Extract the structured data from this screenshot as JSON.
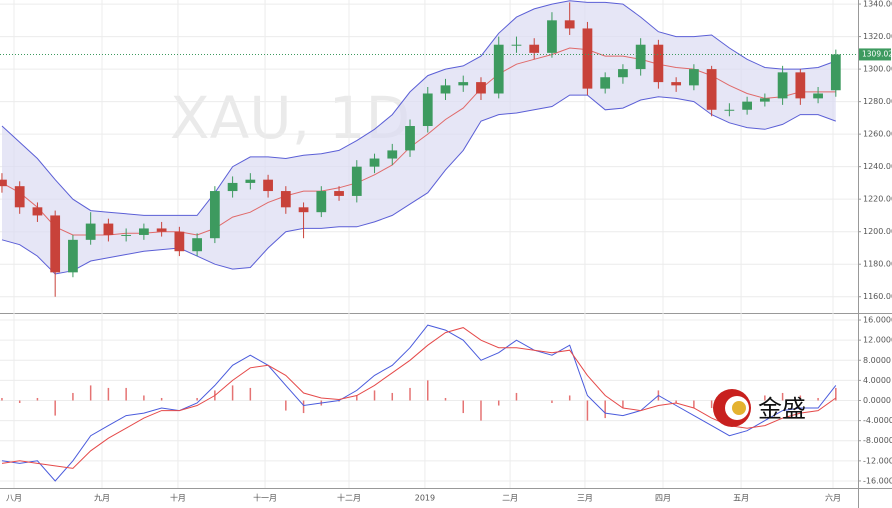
{
  "chart_data": [
    {
      "type": "candlestick",
      "watermark": "XAU, 1D",
      "current_price": 1309.02,
      "xlim": [
        -0.11,
        48.25
      ],
      "xticks": [
        {
          "value": 0.68,
          "label": "八月"
        },
        {
          "value": 5.64,
          "label": "九月"
        },
        {
          "value": 9.92,
          "label": "十月"
        },
        {
          "value": 14.83,
          "label": "十一月"
        },
        {
          "value": 19.56,
          "label": "十二月"
        },
        {
          "value": 23.84,
          "label": "2019"
        },
        {
          "value": 28.64,
          "label": "二月"
        },
        {
          "value": 32.86,
          "label": "三月"
        },
        {
          "value": 37.26,
          "label": "四月"
        },
        {
          "value": 41.66,
          "label": "五月"
        },
        {
          "value": 46.84,
          "label": "六月"
        }
      ],
      "ylim": [
        1150,
        1342.5
      ],
      "yticks": [
        {
          "value": 1160,
          "label": "1160.00"
        },
        {
          "value": 1180,
          "label": "1180.00"
        },
        {
          "value": 1200,
          "label": "1200.00"
        },
        {
          "value": 1220,
          "label": "1220.00"
        },
        {
          "value": 1240,
          "label": "1240.00"
        },
        {
          "value": 1260,
          "label": "1260.00"
        },
        {
          "value": 1280,
          "label": "1280.00"
        },
        {
          "value": 1300,
          "label": "1300.00"
        },
        {
          "value": 1320,
          "label": "1320.00"
        },
        {
          "value": 1340,
          "label": "1340.00"
        }
      ],
      "grid": true,
      "up_color": "#3d9a5f",
      "down_color": "#c8423a",
      "open": [
        1232,
        1228,
        1215,
        1210,
        1175,
        1195,
        1205,
        1198,
        1198,
        1202,
        1200,
        1188,
        1196,
        1225,
        1230,
        1232,
        1225,
        1215,
        1212,
        1225,
        1222,
        1240,
        1245,
        1250,
        1265,
        1285,
        1290,
        1292,
        1285,
        1315,
        1315,
        1310,
        1330,
        1325,
        1288,
        1295,
        1300,
        1315,
        1292,
        1290,
        1300,
        1275,
        1275,
        1280,
        1282,
        1298,
        1282,
        1287
      ],
      "high": [
        1236,
        1231,
        1218,
        1213,
        1198,
        1212,
        1208,
        1202,
        1205,
        1206,
        1203,
        1199,
        1228,
        1234,
        1236,
        1235,
        1228,
        1218,
        1228,
        1228,
        1244,
        1248,
        1254,
        1269,
        1289,
        1294,
        1296,
        1295,
        1320,
        1320,
        1319,
        1335,
        1341,
        1329,
        1298,
        1303,
        1319,
        1318,
        1295,
        1303,
        1302,
        1279,
        1283,
        1285,
        1302,
        1300,
        1289,
        1312
      ],
      "low": [
        1224,
        1211,
        1206,
        1160,
        1172,
        1192,
        1194,
        1194,
        1195,
        1197,
        1185,
        1185,
        1193,
        1221,
        1226,
        1221,
        1211,
        1196,
        1209,
        1219,
        1218,
        1236,
        1241,
        1246,
        1261,
        1281,
        1286,
        1281,
        1282,
        1310,
        1306,
        1307,
        1321,
        1284,
        1285,
        1291,
        1296,
        1288,
        1286,
        1287,
        1271,
        1271,
        1272,
        1277,
        1278,
        1278,
        1279,
        1283
      ],
      "close": [
        1228,
        1215,
        1210,
        1175,
        1195,
        1205,
        1198,
        1198,
        1202,
        1200,
        1188,
        1196,
        1225,
        1230,
        1232,
        1225,
        1215,
        1212,
        1225,
        1222,
        1240,
        1245,
        1250,
        1265,
        1285,
        1290,
        1292,
        1285,
        1315,
        1315,
        1310,
        1330,
        1325,
        1288,
        1295,
        1300,
        1315,
        1292,
        1290,
        1300,
        1275,
        1275,
        1280,
        1282,
        1298,
        1282,
        1285,
        1309.02
      ],
      "bands": {
        "fill": "#dcdcf2",
        "upper_color": "#5b5fd6",
        "mid_color": "#e06a6a",
        "upper": [
          1265,
          1255,
          1245,
          1232,
          1220,
          1213,
          1212,
          1211,
          1210,
          1210,
          1210,
          1210,
          1224,
          1240,
          1246,
          1246,
          1245,
          1247,
          1248,
          1250,
          1256,
          1263,
          1272,
          1286,
          1296,
          1300,
          1302,
          1308,
          1322,
          1332,
          1337,
          1340,
          1342,
          1341,
          1341,
          1340,
          1332,
          1323,
          1320,
          1320,
          1321,
          1313,
          1306,
          1301,
          1300,
          1300,
          1301,
          1305
        ],
        "mid": [
          1230,
          1224,
          1215,
          1203,
          1198,
          1198,
          1198,
          1199,
          1199,
          1200,
          1200,
          1198,
          1202,
          1209,
          1212,
          1218,
          1222,
          1225,
          1225,
          1227,
          1230,
          1235,
          1241,
          1252,
          1260,
          1269,
          1276,
          1288,
          1297,
          1303,
          1306,
          1309,
          1313,
          1312,
          1308,
          1308,
          1306,
          1303,
          1301,
          1300,
          1296,
          1290,
          1285,
          1282,
          1283,
          1286,
          1286,
          1286
        ],
        "lower": [
          1195,
          1192,
          1185,
          1174,
          1176,
          1182,
          1184,
          1186,
          1188,
          1189,
          1190,
          1185,
          1180,
          1177,
          1178,
          1190,
          1200,
          1202,
          1202,
          1203,
          1203,
          1206,
          1210,
          1217,
          1224,
          1238,
          1250,
          1268,
          1272,
          1273,
          1275,
          1277,
          1284,
          1284,
          1275,
          1276,
          1281,
          1283,
          1282,
          1280,
          1272,
          1267,
          1264,
          1263,
          1266,
          1272,
          1272,
          1268
        ]
      }
    },
    {
      "type": "macd",
      "logo": "金盛",
      "ylim": [
        -17.4,
        17.2
      ],
      "yticks": [
        {
          "value": -16,
          "label": "-16.0000"
        },
        {
          "value": -12,
          "label": "-12.0000"
        },
        {
          "value": -8,
          "label": "-8.0000"
        },
        {
          "value": -4,
          "label": "-4.0000"
        },
        {
          "value": 0,
          "label": "0.0000"
        },
        {
          "value": 4,
          "label": "4.0000"
        },
        {
          "value": 8,
          "label": "8.0000"
        },
        {
          "value": 12,
          "label": "12.0000"
        },
        {
          "value": 16,
          "label": "16.0000"
        }
      ],
      "grid": true,
      "hist_color": "#e57373",
      "histogram": [
        0.5,
        -0.5,
        0.5,
        -3,
        1.5,
        3,
        2.5,
        2.5,
        1,
        0.5,
        0,
        0.5,
        2,
        3,
        2.5,
        0,
        -2,
        -2.5,
        -1,
        -0.2,
        1,
        2,
        1.5,
        2.5,
        4,
        0.5,
        -2.5,
        -4,
        -1,
        1.5,
        0,
        -0.5,
        1,
        -4,
        -3.5,
        -1.5,
        0,
        2,
        -0.5,
        -1.5,
        -1.5,
        -2,
        -0.5,
        1,
        1.5,
        1,
        0.5,
        2.5
      ],
      "series": [
        {
          "color": "#4a5bdc",
          "values": [
            -12,
            -12.5,
            -12,
            -16,
            -12,
            -7,
            -5,
            -3,
            -2.5,
            -1.5,
            -2,
            -0.5,
            3,
            7,
            9,
            7,
            3,
            -1,
            -0.5,
            0,
            2,
            5,
            7,
            10.5,
            15,
            14,
            12,
            8,
            9.5,
            12,
            10,
            9,
            11,
            1,
            -2.5,
            -3,
            -2,
            1,
            -1,
            -3,
            -5,
            -7,
            -6,
            -4,
            -2,
            -1.5,
            -1.5,
            3
          ]
        },
        {
          "color": "#e54a4a",
          "values": [
            -12.5,
            -12,
            -12.5,
            -13,
            -13.5,
            -10,
            -7.5,
            -5.5,
            -3.5,
            -2,
            -2,
            -1,
            1,
            4,
            6.5,
            7,
            5,
            1.5,
            0.5,
            0.2,
            1,
            3,
            5.5,
            8,
            11,
            13.5,
            14.5,
            12,
            10.5,
            10.5,
            10,
            9.5,
            10,
            5,
            1,
            -1.5,
            -2,
            -1,
            -0.5,
            -1.5,
            -3.5,
            -5,
            -5.5,
            -5,
            -3.5,
            -2.5,
            -2,
            0.5
          ]
        }
      ]
    }
  ]
}
